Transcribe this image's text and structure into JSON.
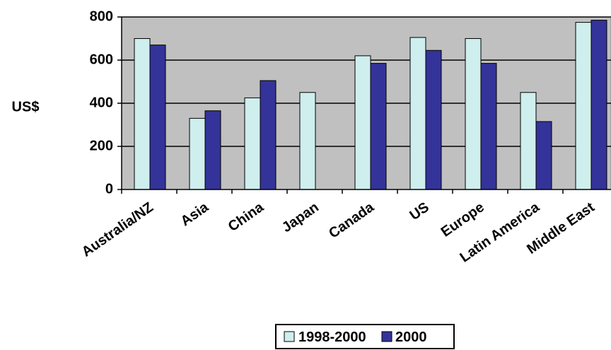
{
  "chart_data": {
    "type": "bar",
    "ylabel": "US$",
    "ylim": [
      0,
      800
    ],
    "yticks": [
      0,
      200,
      400,
      600,
      800
    ],
    "categories": [
      "Australia/NZ",
      "Asia",
      "China",
      "Japan",
      "Canada",
      "US",
      "Europe",
      "Latin America",
      "Middle East"
    ],
    "series": [
      {
        "name": "1998-2000",
        "color": "#cfeeee",
        "values": [
          700,
          330,
          425,
          450,
          620,
          705,
          700,
          450,
          775
        ]
      },
      {
        "name": "2000",
        "color": "#333399",
        "values": [
          670,
          365,
          505,
          null,
          585,
          645,
          585,
          315,
          785
        ]
      }
    ],
    "grid": true,
    "legend": "bottom",
    "plot_background": "#c0c0c0"
  }
}
